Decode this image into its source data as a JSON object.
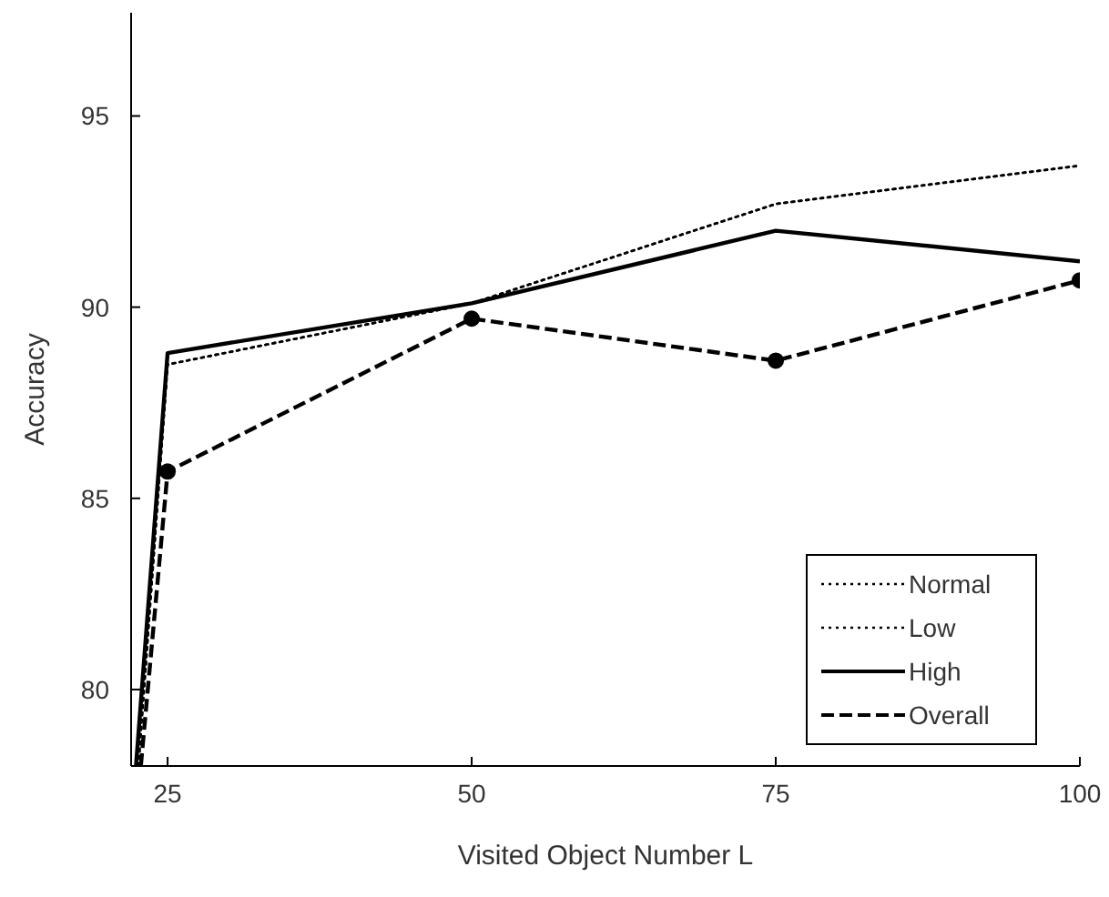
{
  "chart_data": {
    "type": "line",
    "xlabel": "Visited Object Number L",
    "ylabel": "Accuracy",
    "xlim": [
      22,
      100
    ],
    "ylim": [
      78,
      97.7
    ],
    "xticks": [
      25,
      50,
      75,
      100
    ],
    "yticks": [
      80,
      85,
      90,
      95
    ],
    "grid": false,
    "legend": "bottom right",
    "series": [
      {
        "name": "Normal",
        "color": "#000000",
        "line_style": "dotted",
        "marker": "none",
        "x": [
          22.6,
          25,
          50,
          75,
          100
        ],
        "values": [
          78,
          88.5,
          90.1,
          92.7,
          93.7
        ]
      },
      {
        "name": "Low",
        "color": "#000000",
        "line_style": "dotted",
        "marker": "none",
        "x": [
          22.6,
          25,
          50,
          75,
          100
        ],
        "values": [
          78,
          88.5,
          90.1,
          92.7,
          93.7
        ]
      },
      {
        "name": "High",
        "color": "#000000",
        "line_style": "solid",
        "marker": "none",
        "x": [
          22.4,
          25,
          50,
          75,
          100
        ],
        "values": [
          78,
          88.8,
          90.1,
          92.0,
          91.2
        ]
      },
      {
        "name": "Overall",
        "color": "#000000",
        "line_style": "dashed",
        "marker": "circle",
        "x": [
          22.8,
          25,
          50,
          75,
          100
        ],
        "values": [
          78,
          85.7,
          89.7,
          88.6,
          90.7
        ]
      }
    ]
  }
}
